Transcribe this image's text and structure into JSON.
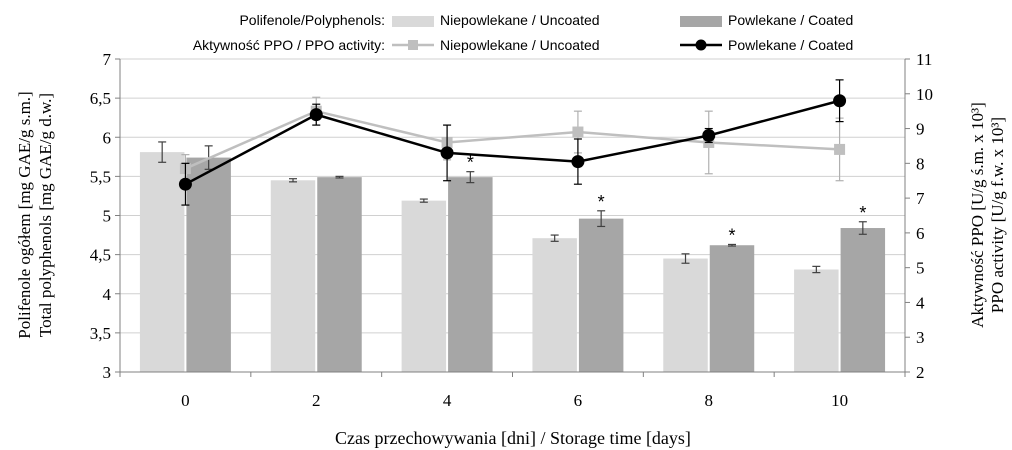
{
  "legend": {
    "row1_label": "Polifenole/Polyphenols:",
    "row2_label": "Aktywność PPO / PPO activity:"
  },
  "chart_data": {
    "type": "bar",
    "categories": [
      "0",
      "2",
      "4",
      "6",
      "8",
      "10"
    ],
    "title": "",
    "xlabel": "Czas przechowywania [dni] / Storage time [days]",
    "ylabel_left_line1": "Polifenole ogółem [mg GAE/g s.m.]",
    "ylabel_left_line2": "Total polyphenols [mg GAE/g d.w.]",
    "ylabel_right_line1": "Aktywność PPO [U/g ś.m. x 10³]",
    "ylabel_right_line2": "PPO activity [U/g f.w. x 10³]",
    "ylim_left": [
      3,
      7
    ],
    "ylim_right": [
      2,
      11
    ],
    "yticks_left": [
      "3",
      "3,5",
      "4",
      "4,5",
      "5",
      "5,5",
      "6",
      "6,5",
      "7"
    ],
    "yticks_right": [
      "2",
      "3",
      "4",
      "5",
      "6",
      "7",
      "8",
      "9",
      "10",
      "11"
    ],
    "grid": "horizontal",
    "legend_position": "top",
    "bar_series": [
      {
        "name": "Niepowlekane / Uncoated",
        "color": "#d9d9d9",
        "values": [
          5.81,
          5.45,
          5.19,
          4.71,
          4.45,
          4.31
        ],
        "errors": [
          0.13,
          0.02,
          0.02,
          0.04,
          0.06,
          0.04
        ],
        "significance": [
          "",
          "",
          "",
          "",
          "",
          ""
        ]
      },
      {
        "name": "Powlekane / Coated",
        "color": "#a6a6a6",
        "values": [
          5.74,
          5.49,
          5.49,
          4.96,
          4.62,
          4.84
        ],
        "errors": [
          0.15,
          0.01,
          0.07,
          0.1,
          0.01,
          0.08
        ],
        "significance": [
          "",
          "",
          "*",
          "*",
          "*",
          "*"
        ]
      }
    ],
    "line_series": [
      {
        "name": "Niepowlekane / Uncoated",
        "color": "#bfbfbf",
        "marker": "square",
        "values": [
          7.85,
          9.5,
          8.6,
          8.9,
          8.6,
          8.4
        ],
        "errors": [
          0.4,
          0.4,
          0.5,
          0.6,
          0.9,
          0.9
        ]
      },
      {
        "name": "Powlekane / Coated",
        "color": "#000000",
        "marker": "circle",
        "values": [
          7.4,
          9.4,
          8.3,
          8.05,
          8.8,
          9.8
        ],
        "errors": [
          0.6,
          0.3,
          0.8,
          0.65,
          0.2,
          0.6
        ]
      }
    ]
  }
}
